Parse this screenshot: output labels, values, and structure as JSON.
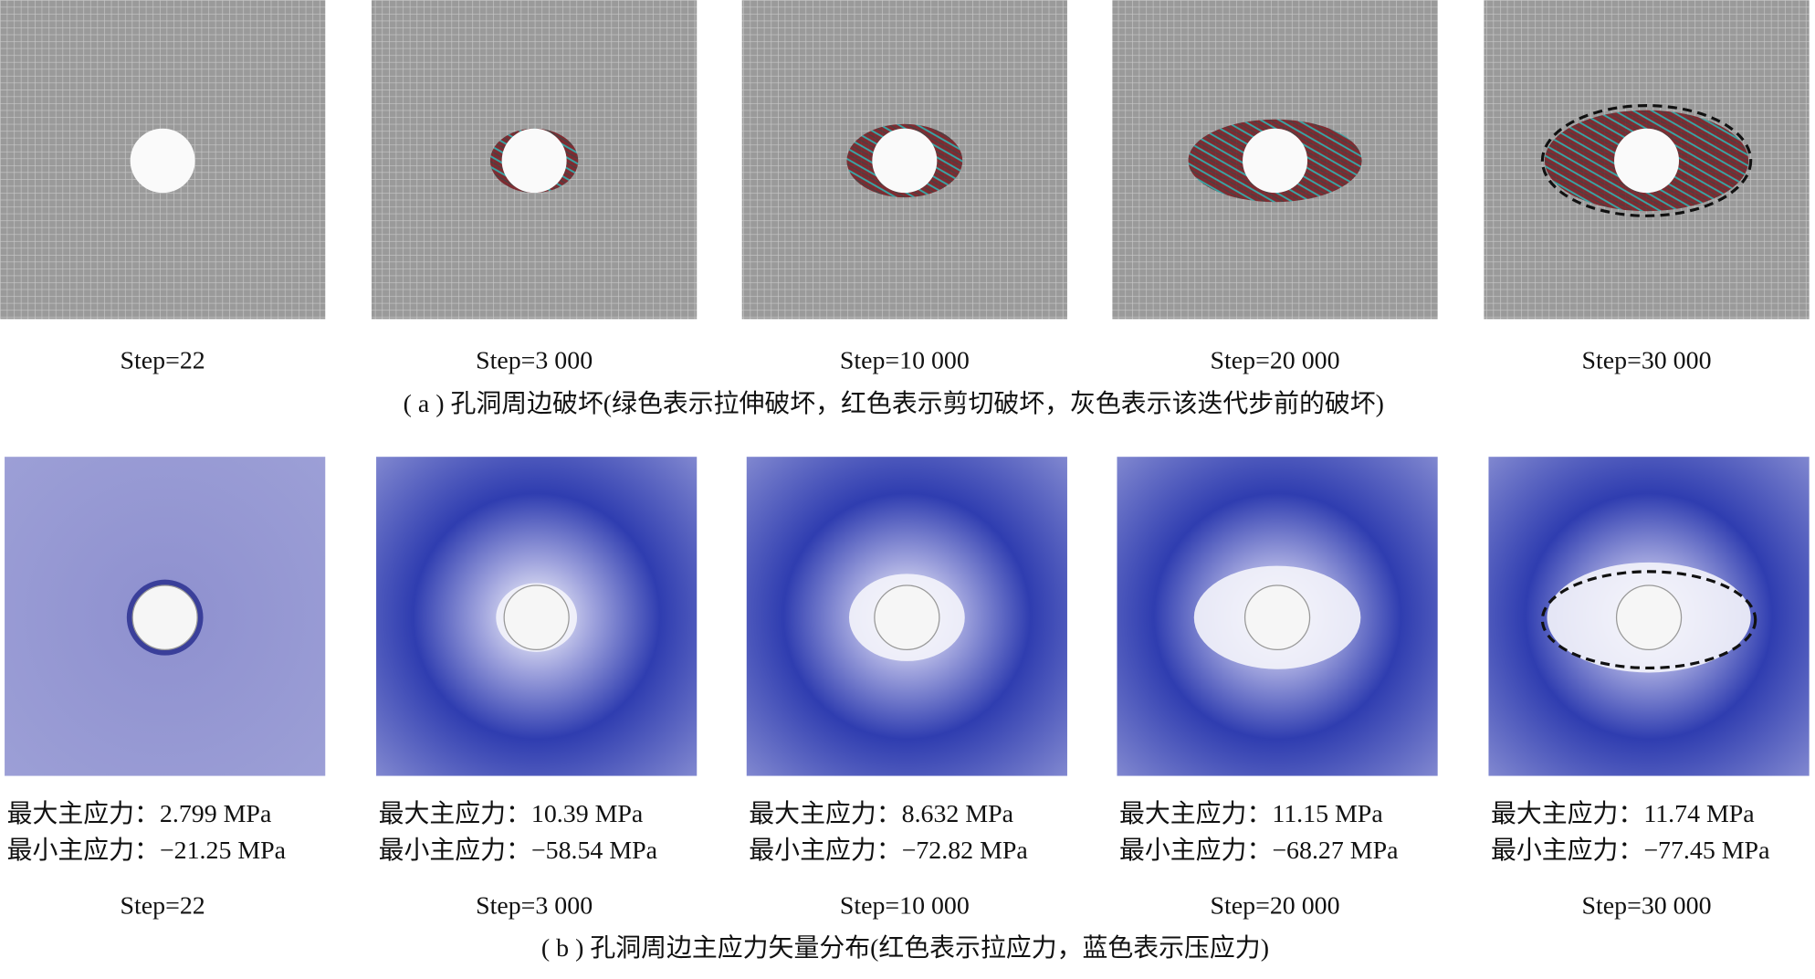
{
  "row_a": {
    "panels": [
      {
        "step": "Step=22"
      },
      {
        "step": "Step=3 000"
      },
      {
        "step": "Step=10 000"
      },
      {
        "step": "Step=20 000"
      },
      {
        "step": "Step=30 000"
      }
    ],
    "caption": "( a ) 孔洞周边破坏(绿色表示拉伸破坏，红色表示剪切破坏，灰色表示该迭代步前的破坏)"
  },
  "row_b": {
    "panels": [
      {
        "max_stress": "最大主应力：2.799 MPa",
        "min_stress": "最小主应力：−21.25 MPa",
        "step": "Step=22"
      },
      {
        "max_stress": "最大主应力：10.39 MPa",
        "min_stress": "最小主应力：−58.54 MPa",
        "step": "Step=3 000"
      },
      {
        "max_stress": "最大主应力：8.632 MPa",
        "min_stress": "最小主应力：−72.82 MPa",
        "step": "Step=10 000"
      },
      {
        "max_stress": "最大主应力：11.15 MPa",
        "min_stress": "最小主应力：−68.27 MPa",
        "step": "Step=20 000"
      },
      {
        "max_stress": "最大主应力：11.74 MPa",
        "min_stress": "最小主应力：−77.45 MPa",
        "step": "Step=30 000"
      }
    ],
    "caption": "( b ) 孔洞周边主应力矢量分布(红色表示拉应力，蓝色表示压应力)"
  }
}
